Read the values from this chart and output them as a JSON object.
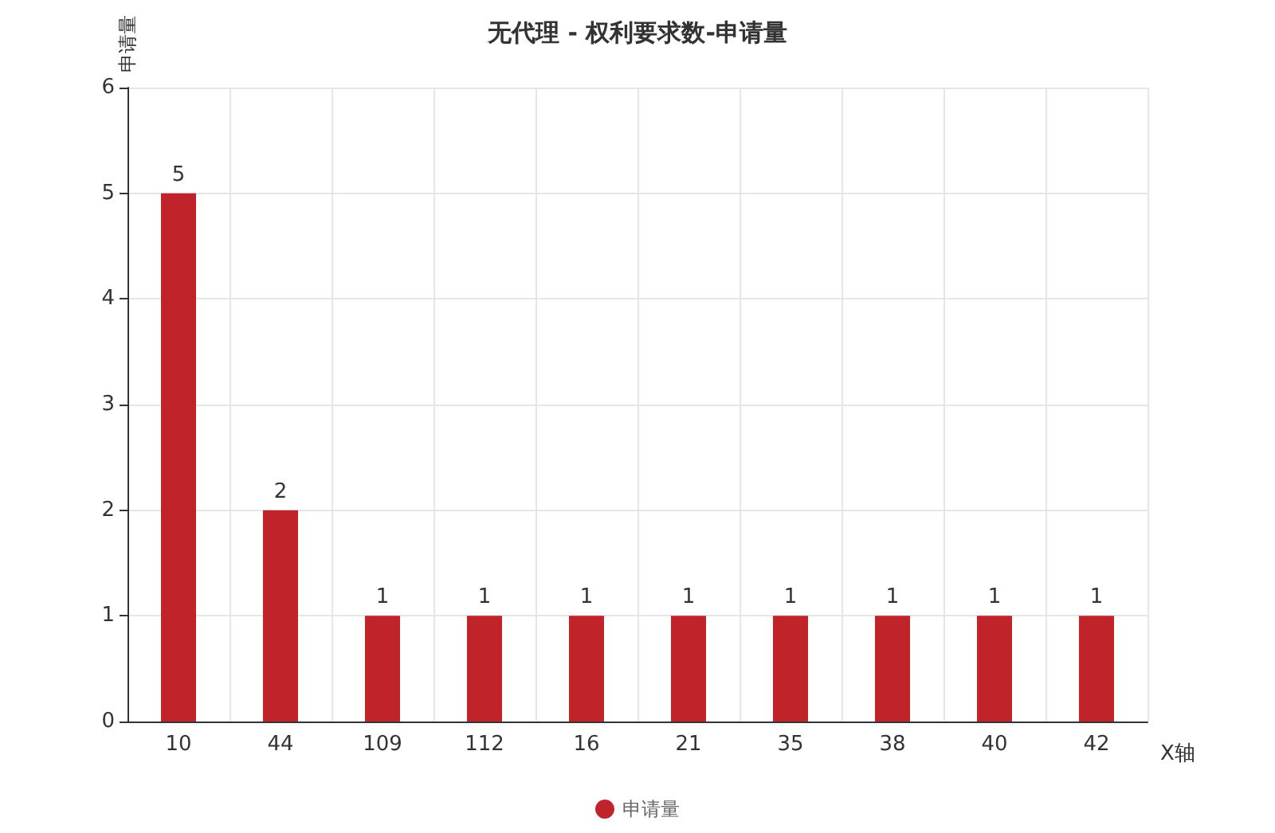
{
  "chart_data": {
    "type": "bar",
    "title": "无代理 - 权利要求数-申请量",
    "xlabel": "X轴",
    "ylabel": "申请量",
    "categories": [
      "10",
      "44",
      "109",
      "112",
      "16",
      "21",
      "35",
      "38",
      "40",
      "42"
    ],
    "series": [
      {
        "name": "申请量",
        "color": "#c1232b",
        "values": [
          5,
          2,
          1,
          1,
          1,
          1,
          1,
          1,
          1,
          1
        ]
      }
    ],
    "ylim": [
      0,
      6
    ],
    "yticks": [
      0,
      1,
      2,
      3,
      4,
      5,
      6
    ],
    "grid": true,
    "legend": "bottom",
    "data_labels": true
  }
}
